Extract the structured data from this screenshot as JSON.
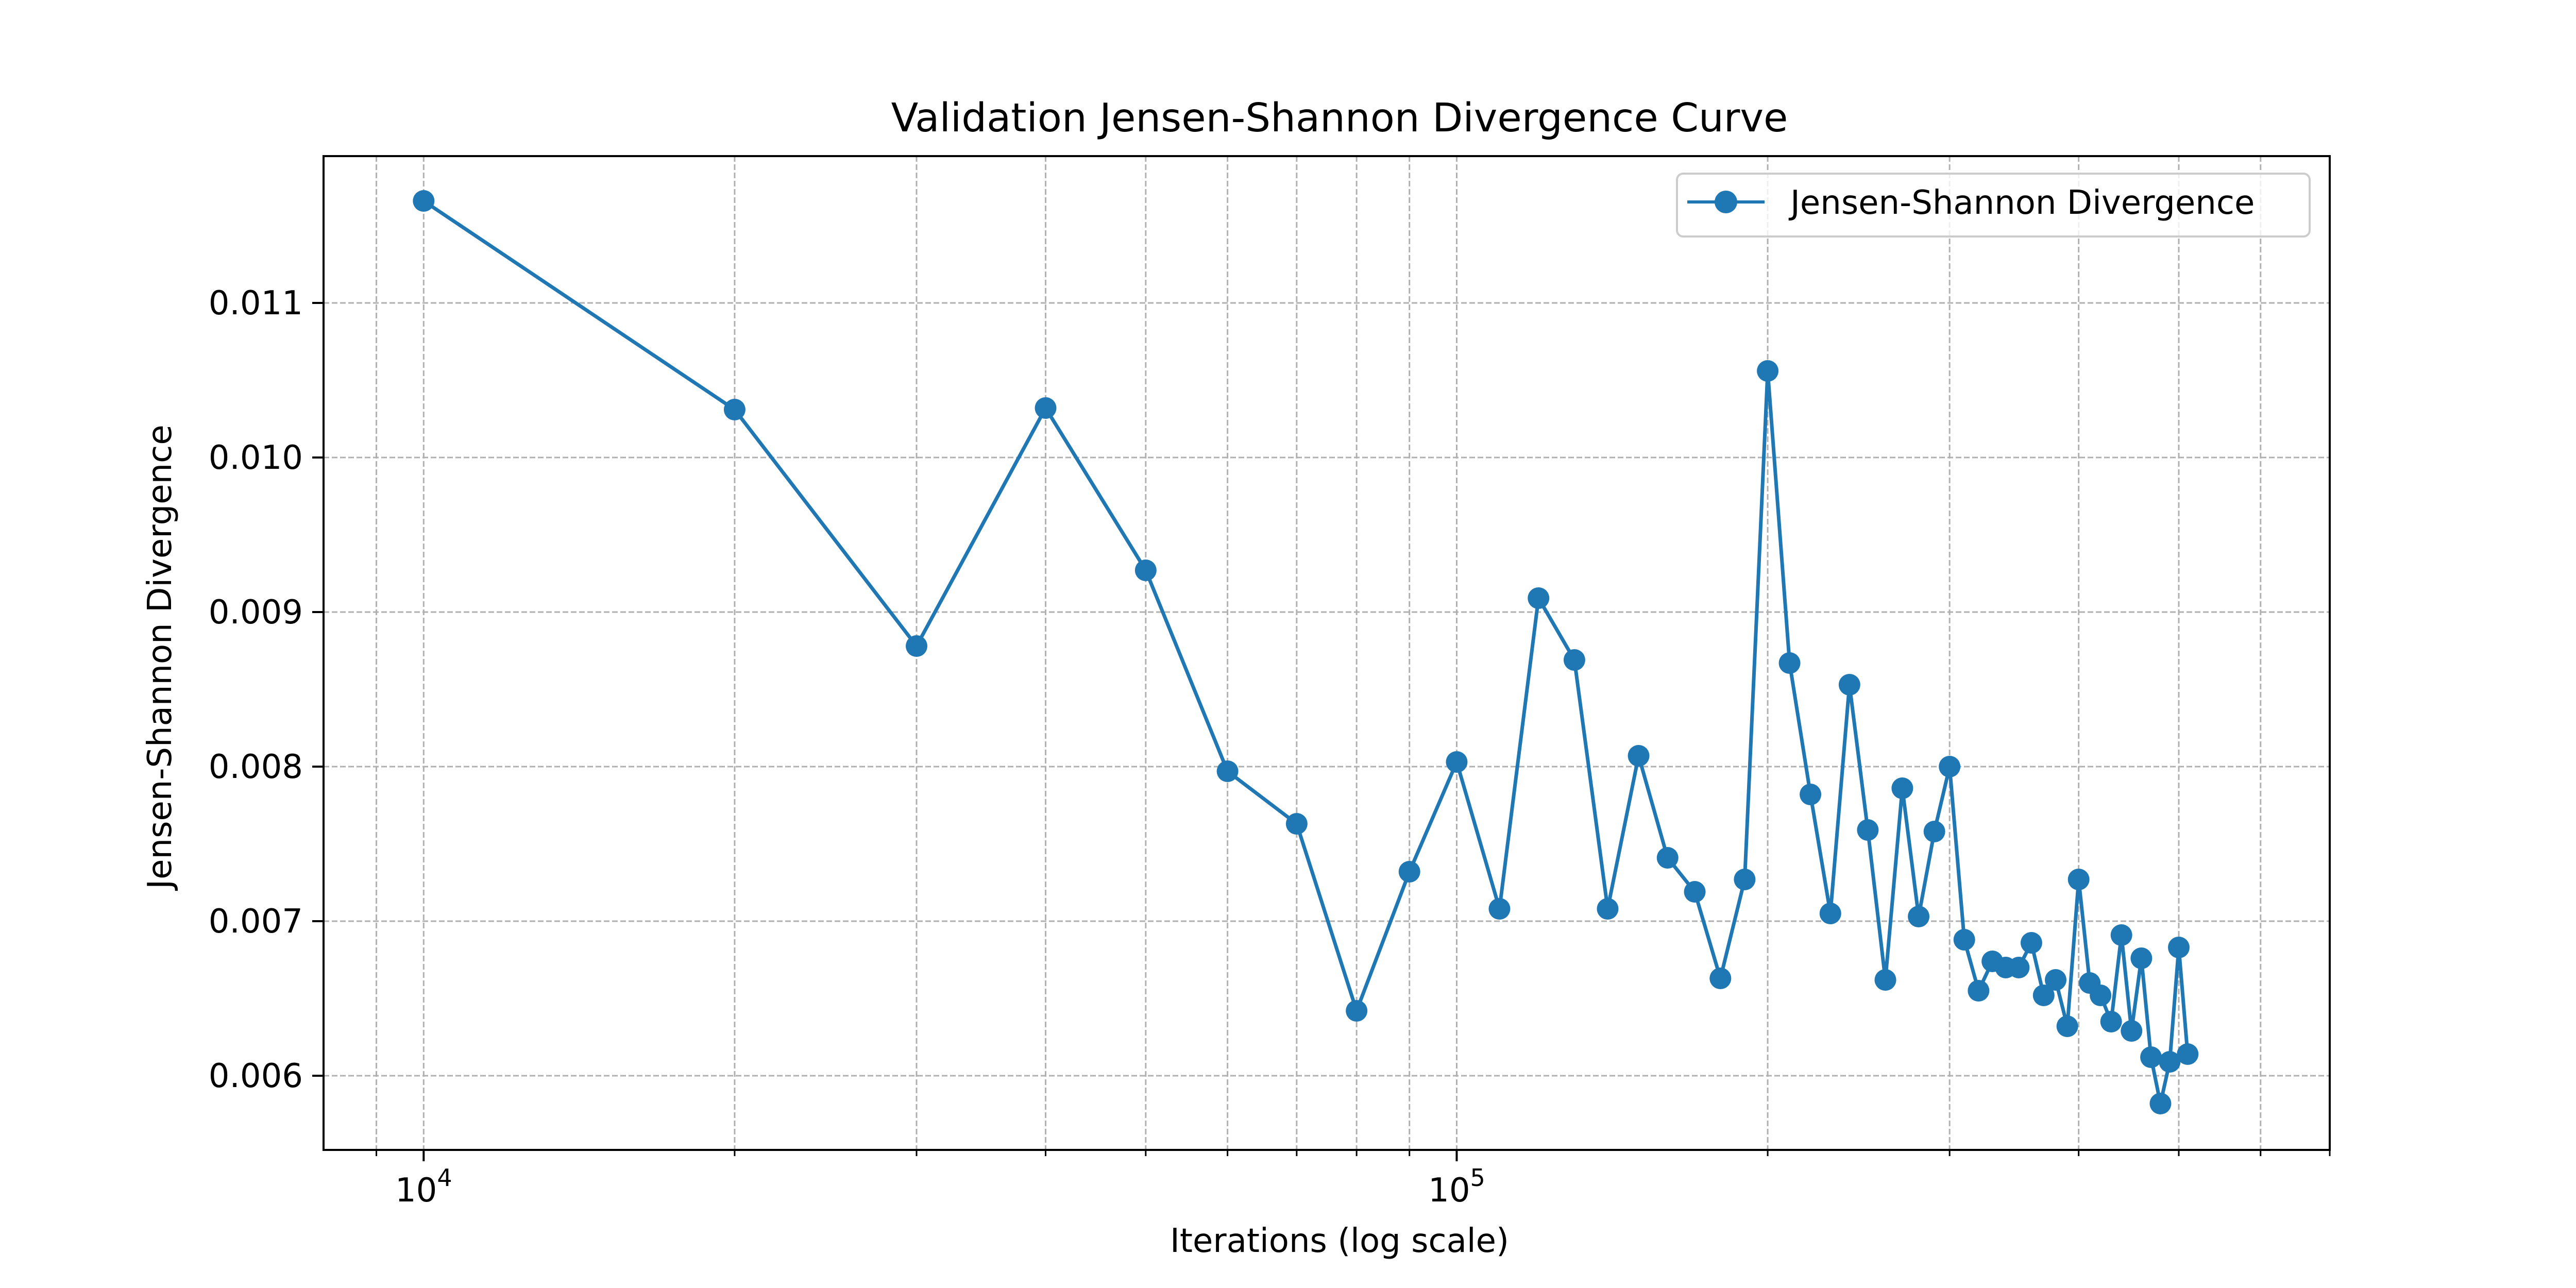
{
  "chart_data": {
    "type": "line",
    "title": "Validation Jensen-Shannon Divergence Curve",
    "xlabel": "Iterations (log scale)",
    "ylabel": "Jensen-Shannon Divergence",
    "x_scale": "log",
    "xlim": [
      8000,
      700000
    ],
    "ylim": [
      0.00552,
      0.01195
    ],
    "grid": true,
    "grid_style": "dashed",
    "legend_position": "top-right",
    "x_major_ticks": [
      {
        "value": 10000,
        "base": "10",
        "exp": "4"
      },
      {
        "value": 100000,
        "base": "10",
        "exp": "5"
      }
    ],
    "x_minor_ticks": [
      9000,
      20000,
      30000,
      40000,
      50000,
      60000,
      70000,
      80000,
      90000,
      200000,
      300000,
      400000,
      500000,
      600000,
      700000
    ],
    "y_ticks": [
      {
        "value": 0.006,
        "label": "0.006"
      },
      {
        "value": 0.007,
        "label": "0.007"
      },
      {
        "value": 0.008,
        "label": "0.008"
      },
      {
        "value": 0.009,
        "label": "0.009"
      },
      {
        "value": 0.01,
        "label": "0.010"
      },
      {
        "value": 0.011,
        "label": "0.011"
      }
    ],
    "series": [
      {
        "name": "Jensen-Shannon Divergence",
        "color": "#1f77b4",
        "marker": "circle",
        "x": [
          10000,
          20000,
          30000,
          40000,
          50000,
          60000,
          70000,
          80000,
          90000,
          100000,
          110000,
          120000,
          130000,
          140000,
          150000,
          160000,
          170000,
          180000,
          190000,
          200000,
          210000,
          220000,
          230000,
          240000,
          250000,
          260000,
          270000,
          280000,
          290000,
          300000,
          310000,
          320000,
          330000,
          340000,
          350000,
          360000,
          370000,
          380000,
          390000,
          400000,
          410000,
          420000,
          430000,
          440000,
          450000,
          460000,
          470000,
          480000,
          490000,
          500000,
          510000
        ],
        "values": [
          0.01166,
          0.01031,
          0.00878,
          0.01032,
          0.00927,
          0.00797,
          0.00763,
          0.00642,
          0.00732,
          0.00803,
          0.00708,
          0.00909,
          0.00869,
          0.00708,
          0.00807,
          0.00741,
          0.00719,
          0.00663,
          0.00727,
          0.01056,
          0.00867,
          0.00782,
          0.00705,
          0.00853,
          0.00759,
          0.00662,
          0.00786,
          0.00703,
          0.00758,
          0.008,
          0.00688,
          0.00655,
          0.00674,
          0.0067,
          0.0067,
          0.00686,
          0.00652,
          0.00662,
          0.00632,
          0.00727,
          0.0066,
          0.00652,
          0.00635,
          0.00691,
          0.00629,
          0.00676,
          0.00612,
          0.00582,
          0.00609,
          0.00683,
          0.00614
        ]
      }
    ]
  }
}
